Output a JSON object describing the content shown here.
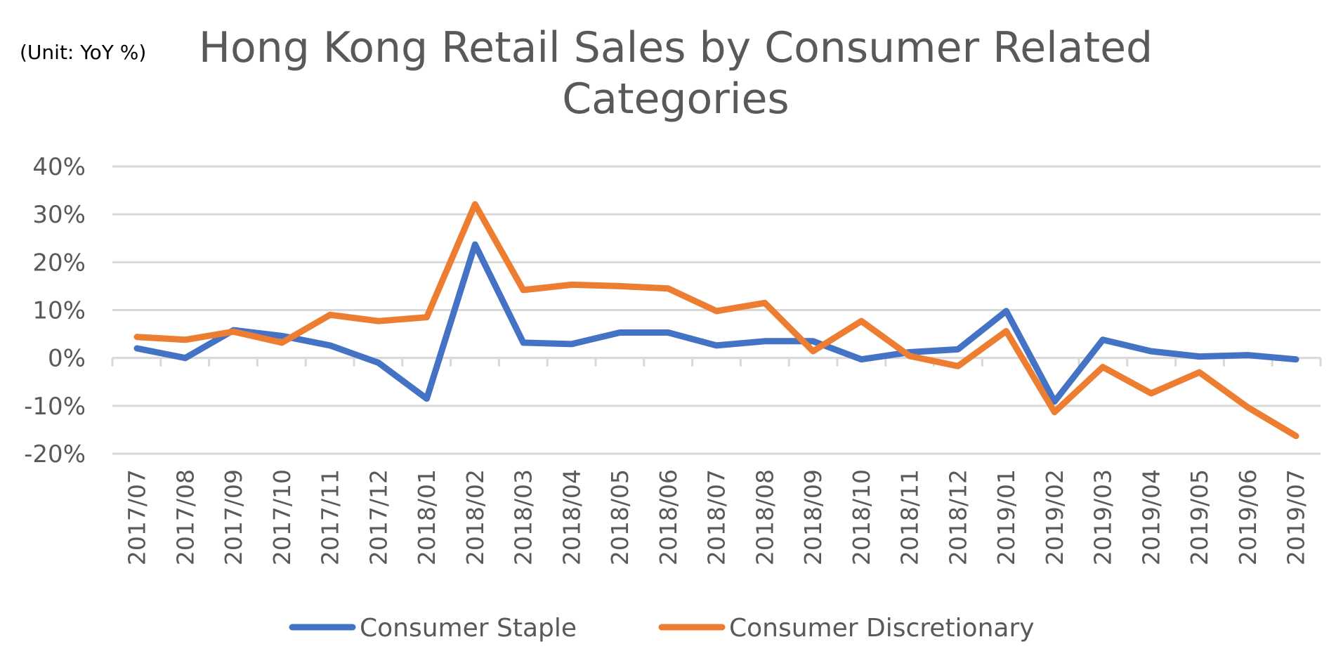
{
  "chart_data": {
    "type": "line",
    "unit_label": "(Unit: YoY %)",
    "title_lines": [
      "Hong Kong Retail Sales by Consumer Related",
      "Categories"
    ],
    "categories": [
      "2017/07",
      "2017/08",
      "2017/09",
      "2017/10",
      "2017/11",
      "2017/12",
      "2018/01",
      "2018/02",
      "2018/03",
      "2018/04",
      "2018/05",
      "2018/06",
      "2018/07",
      "2018/08",
      "2018/09",
      "2018/10",
      "2018/11",
      "2018/12",
      "2019/01",
      "2019/02",
      "2019/03",
      "2019/04",
      "2019/05",
      "2019/06",
      "2019/07"
    ],
    "ylim": [
      -20,
      40
    ],
    "yticks": [
      -20,
      -10,
      0,
      10,
      20,
      30,
      40
    ],
    "ytick_labels": [
      "-20%",
      "-10%",
      "0%",
      "10%",
      "20%",
      "30%",
      "40%"
    ],
    "grid": true,
    "legend_position": "bottom",
    "series": [
      {
        "name": "Consumer Staple",
        "color": "#4472C4",
        "values": [
          2.0,
          0.0,
          5.8,
          4.6,
          2.6,
          -1.0,
          -8.5,
          23.7,
          3.2,
          2.9,
          5.3,
          5.3,
          2.6,
          3.5,
          3.5,
          -0.3,
          1.2,
          1.8,
          9.8,
          -9.1,
          3.8,
          1.4,
          0.3,
          0.6,
          -0.3
        ]
      },
      {
        "name": "Consumer Discretionary",
        "color": "#ED7D31",
        "values": [
          4.4,
          3.8,
          5.5,
          3.2,
          9.0,
          7.7,
          8.5,
          32.1,
          14.2,
          15.3,
          15.0,
          14.5,
          9.8,
          11.5,
          1.4,
          7.7,
          0.4,
          -1.7,
          5.6,
          -11.3,
          -1.9,
          -7.4,
          -3.0,
          -10.3,
          -16.3
        ]
      }
    ]
  }
}
